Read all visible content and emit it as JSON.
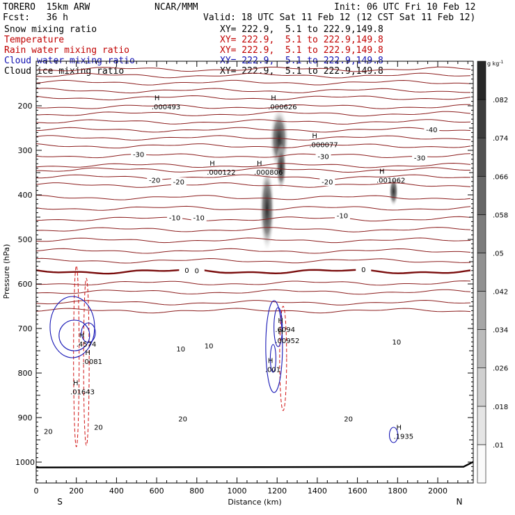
{
  "header": {
    "model": "TORERO  15km ARW",
    "center": "NCAR/MMM",
    "init": "Init: 06 UTC Fri 10 Feb 12",
    "fcst": "Fcst:   36 h",
    "valid": "Valid: 18 UTC Sat 11 Feb 12 (12 CST Sat 11 Feb 12)"
  },
  "legend": [
    {
      "label": "Snow mixing ratio",
      "xy": "XY= 222.9,  5.1 to 222.9,149.8",
      "color": "#000000"
    },
    {
      "label": "Temperature",
      "xy": "XY= 222.9,  5.1 to 222.9,149.8",
      "color": "#c00000"
    },
    {
      "label": "Rain water mixing ratio",
      "xy": "XY= 222.9,  5.1 to 222.9,149.8",
      "color": "#c00000"
    },
    {
      "label": "Cloud water mixing ratio",
      "xy": "XY= 222.9,  5.1 to 222.9,149.8",
      "color": "#1010b0"
    },
    {
      "label": "Cloud ice mixing ratio",
      "xy": "XY= 222.9,  5.1 to 222.9,149.8",
      "color": "#000000"
    }
  ],
  "chart_data": {
    "type": "cross-section contour",
    "xlabel": "Distance (km)",
    "ylabel": "Pressure (hPa)",
    "xlim": [
      0,
      2180
    ],
    "ylim": [
      1050,
      100
    ],
    "x_ticks": [
      0,
      200,
      400,
      600,
      800,
      1000,
      1200,
      1400,
      1600,
      1800,
      2000
    ],
    "y_ticks": [
      200,
      300,
      400,
      500,
      600,
      700,
      800,
      900,
      1000
    ],
    "x_end_labels": {
      "left": "S",
      "right": "N"
    },
    "colorbar": {
      "unit": "g kg",
      "unit_sup": "-1",
      "labels": [
        ".01",
        ".018",
        ".026",
        ".034",
        ".042",
        ".05",
        ".058",
        ".066",
        ".074",
        ".082"
      ]
    },
    "isotherm_labels": [
      {
        "text": "-40",
        "x": 1970,
        "p": 255
      },
      {
        "text": "-30",
        "x": 510,
        "p": 310
      },
      {
        "text": "-30",
        "x": 1430,
        "p": 315
      },
      {
        "text": "-30",
        "x": 1910,
        "p": 318
      },
      {
        "text": "-20",
        "x": 590,
        "p": 368
      },
      {
        "text": "-20",
        "x": 710,
        "p": 372
      },
      {
        "text": "-20",
        "x": 1450,
        "p": 372
      },
      {
        "text": "-10",
        "x": 690,
        "p": 452
      },
      {
        "text": "-10",
        "x": 810,
        "p": 452
      },
      {
        "text": "-10",
        "x": 1525,
        "p": 448
      },
      {
        "text": "0",
        "x": 750,
        "p": 570
      },
      {
        "text": "0",
        "x": 800,
        "p": 571
      },
      {
        "text": "0",
        "x": 1630,
        "p": 569
      },
      {
        "text": "10",
        "x": 720,
        "p": 747
      },
      {
        "text": "10",
        "x": 860,
        "p": 740
      },
      {
        "text": "10",
        "x": 1795,
        "p": 731
      },
      {
        "text": "20",
        "x": 730,
        "p": 904
      },
      {
        "text": "20",
        "x": 1555,
        "p": 904
      },
      {
        "text": "20",
        "x": 310,
        "p": 923
      },
      {
        "text": "20",
        "x": 60,
        "p": 932
      }
    ],
    "maxima": [
      {
        "label": ".000493",
        "x": 575,
        "p": 200,
        "color": "#000000"
      },
      {
        "label": ".000626",
        "x": 1155,
        "p": 200,
        "color": "#000000"
      },
      {
        "label": ".000077",
        "x": 1360,
        "p": 285,
        "color": "#000000"
      },
      {
        "label": ".000122",
        "x": 850,
        "p": 347,
        "color": "#000000"
      },
      {
        "label": ".000806",
        "x": 1085,
        "p": 347,
        "color": "#000000"
      },
      {
        "label": ".001062",
        "x": 1695,
        "p": 365,
        "color": "#000000"
      },
      {
        "label": ".6094",
        "x": 1190,
        "p": 700,
        "color": "#1010b0"
      },
      {
        "label": ".00952",
        "x": 1190,
        "p": 725,
        "color": "#c00000"
      },
      {
        "label": ".4574",
        "x": 200,
        "p": 733,
        "color": "#1010b0"
      },
      {
        "label": ".0081",
        "x": 230,
        "p": 772,
        "color": "#c00000"
      },
      {
        "label": ".01643",
        "x": 170,
        "p": 840,
        "color": "#c00000"
      },
      {
        "label": ".001",
        "x": 1140,
        "p": 790,
        "color": "#1010b0"
      },
      {
        "label": ".1935",
        "x": 1780,
        "p": 940,
        "color": "#1010b0"
      }
    ]
  }
}
